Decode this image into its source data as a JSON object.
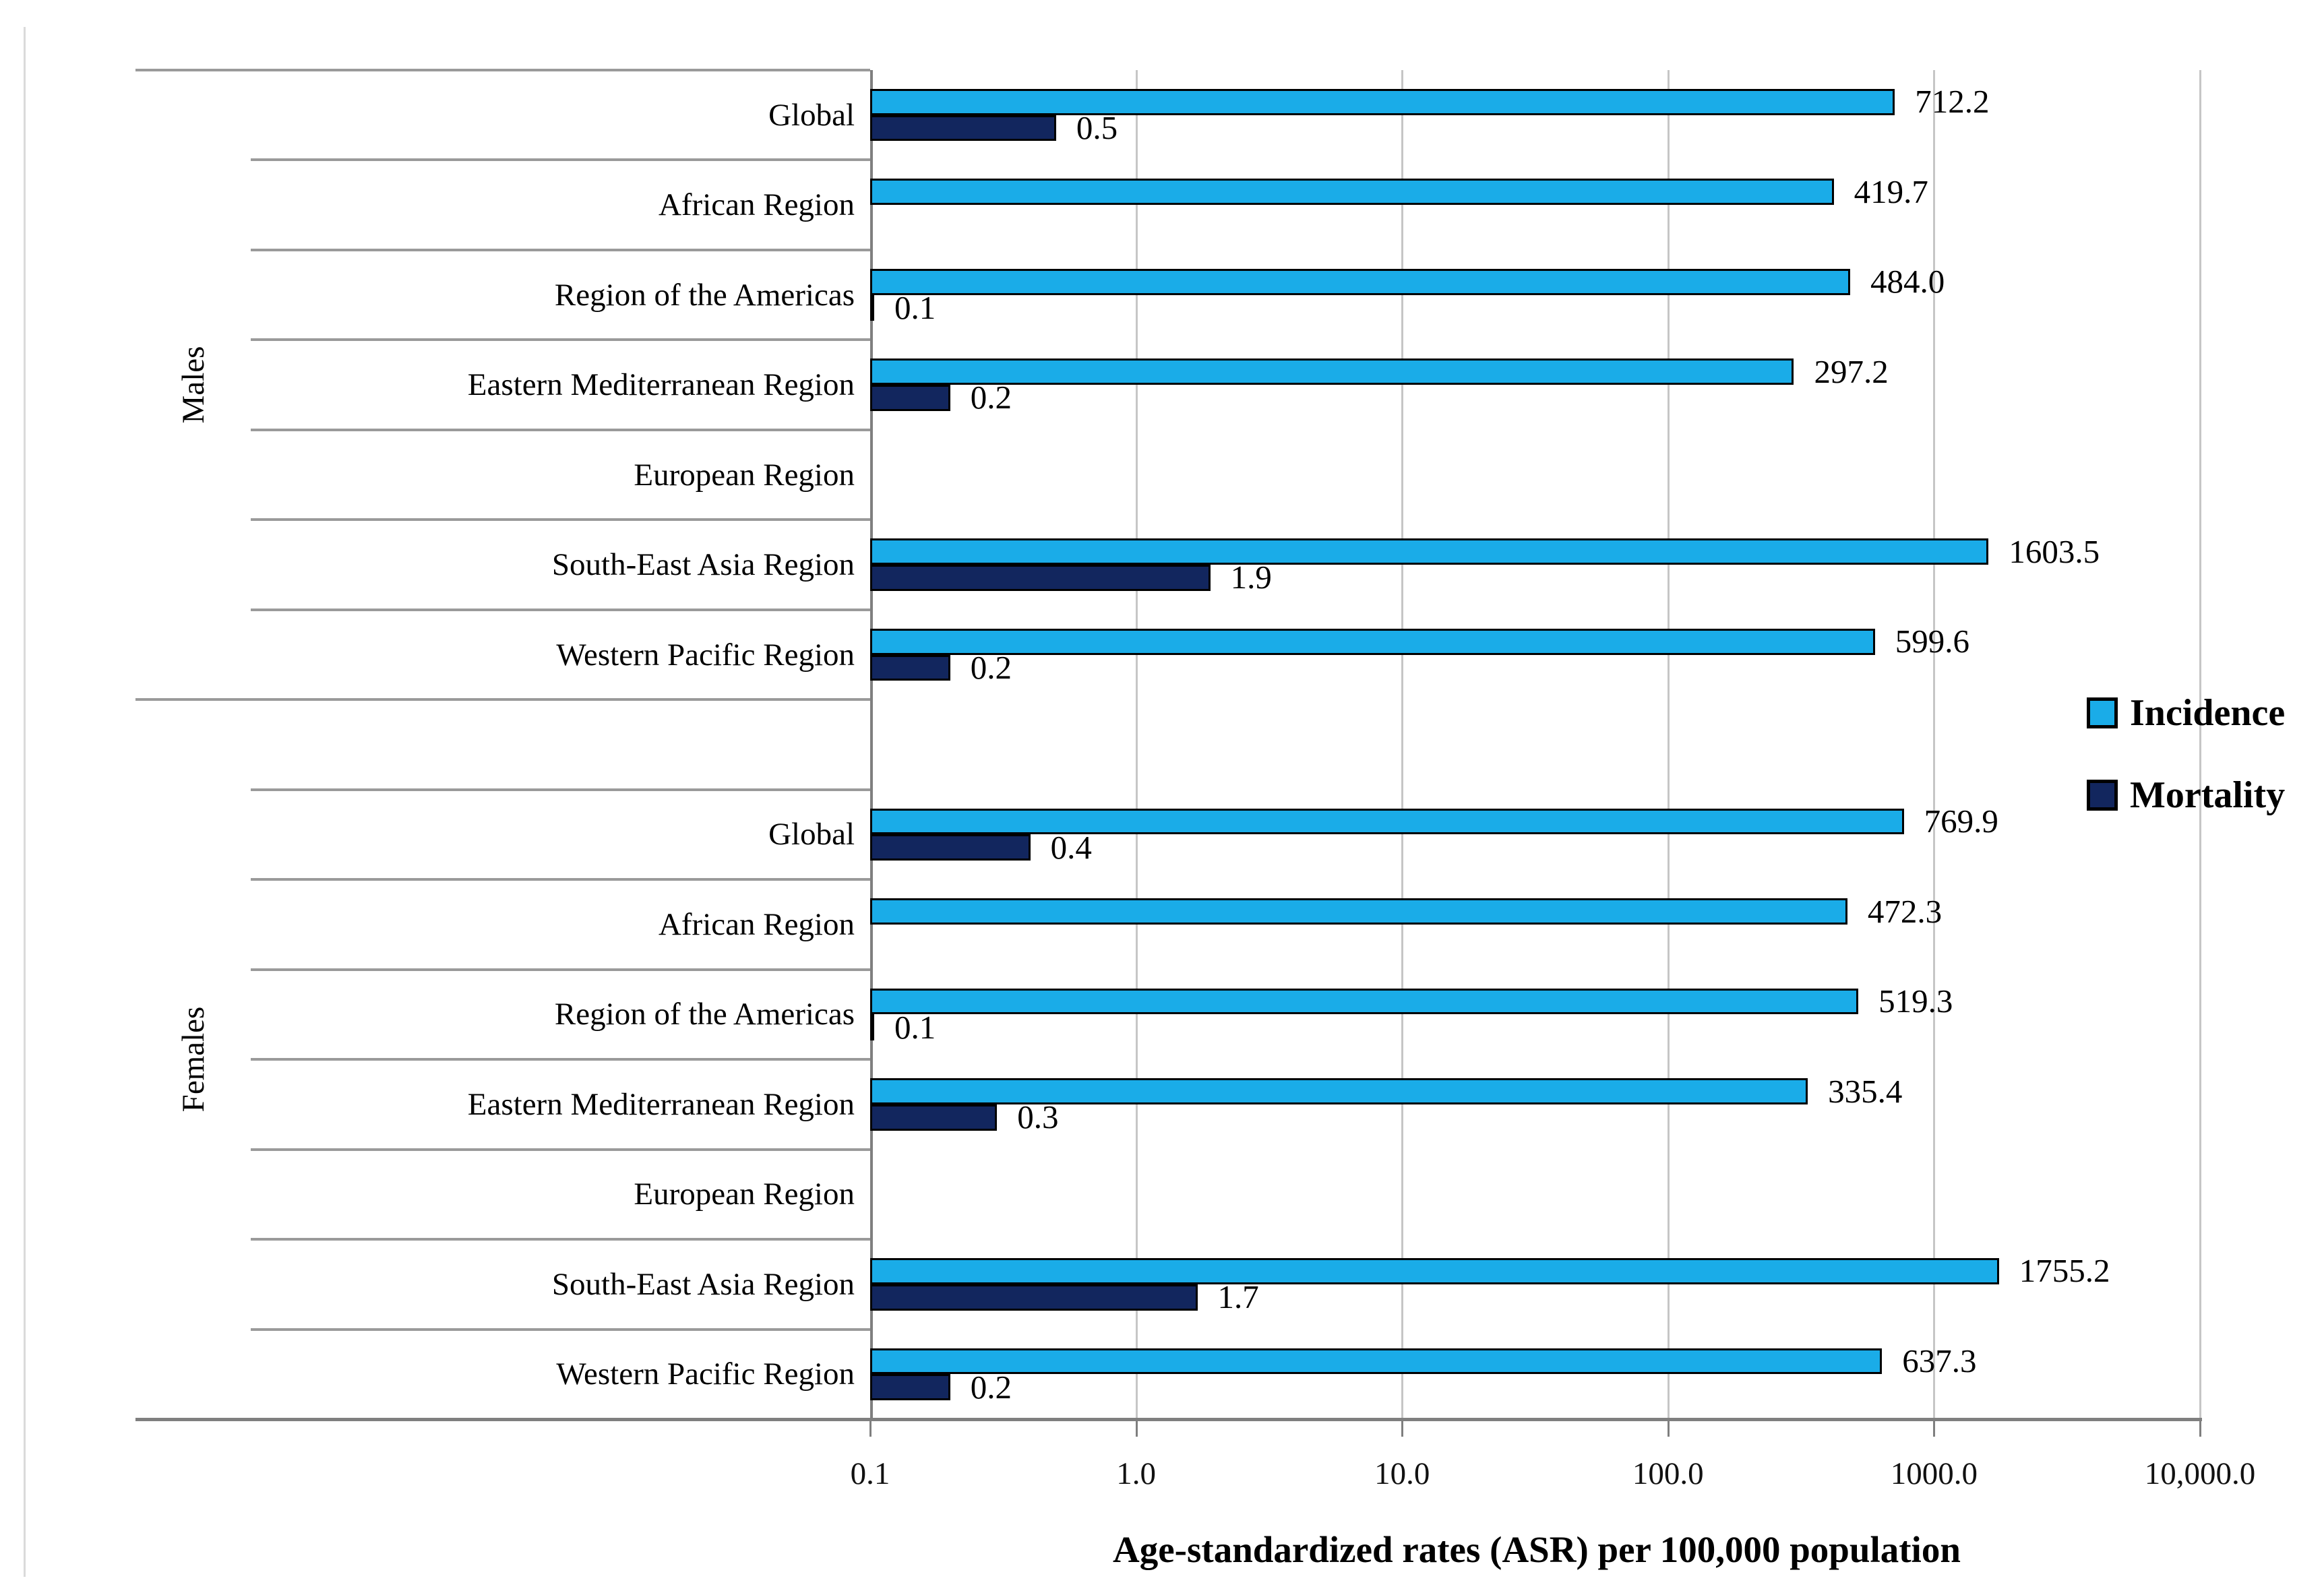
{
  "chart_data": {
    "type": "bar",
    "orientation": "horizontal",
    "x_scale": "log",
    "xlim": [
      0.1,
      10000
    ],
    "grid": "vertical-only",
    "xlabel": "Age-standardized rates (ASR) per 100,000 population",
    "x_ticks": [
      "0.1",
      "1.0",
      "10.0",
      "100.0",
      "1000.0",
      "10,000.0"
    ],
    "x_tick_values": [
      0.1,
      1,
      10,
      100,
      1000,
      10000
    ],
    "legend_position": "right",
    "legend": [
      {
        "name": "Incidence",
        "color": "#1AACE8"
      },
      {
        "name": "Mortality",
        "color": "#12265E"
      }
    ],
    "groups": [
      {
        "name": "Males",
        "rows": [
          {
            "label": "Global",
            "incidence": 712.2,
            "incidence_label": "712.2",
            "mortality": 0.5,
            "mortality_label": "0.5"
          },
          {
            "label": "African Region",
            "incidence": 419.7,
            "incidence_label": "419.7",
            "mortality": null,
            "mortality_label": ""
          },
          {
            "label": "Region of the Americas",
            "incidence": 484.0,
            "incidence_label": "484.0",
            "mortality": 0.1,
            "mortality_label": "0.1"
          },
          {
            "label": "Eastern Mediterranean Region",
            "incidence": 297.2,
            "incidence_label": "297.2",
            "mortality": 0.2,
            "mortality_label": "0.2"
          },
          {
            "label": "European Region",
            "incidence": null,
            "incidence_label": "",
            "mortality": null,
            "mortality_label": ""
          },
          {
            "label": "South-East Asia Region",
            "incidence": 1603.5,
            "incidence_label": "1603.5",
            "mortality": 1.9,
            "mortality_label": "1.9"
          },
          {
            "label": "Western Pacific Region",
            "incidence": 599.6,
            "incidence_label": "599.6",
            "mortality": 0.2,
            "mortality_label": "0.2"
          }
        ]
      },
      {
        "name": "Females",
        "rows": [
          {
            "label": "",
            "spacer": true,
            "incidence": null,
            "incidence_label": "",
            "mortality": null,
            "mortality_label": ""
          },
          {
            "label": "Global",
            "incidence": 769.9,
            "incidence_label": "769.9",
            "mortality": 0.4,
            "mortality_label": "0.4"
          },
          {
            "label": "African Region",
            "incidence": 472.3,
            "incidence_label": "472.3",
            "mortality": null,
            "mortality_label": ""
          },
          {
            "label": "Region of the Americas",
            "incidence": 519.3,
            "incidence_label": "519.3",
            "mortality": 0.1,
            "mortality_label": "0.1"
          },
          {
            "label": "Eastern Mediterranean Region",
            "incidence": 335.4,
            "incidence_label": "335.4",
            "mortality": 0.3,
            "mortality_label": "0.3"
          },
          {
            "label": "European Region",
            "incidence": null,
            "incidence_label": "",
            "mortality": null,
            "mortality_label": ""
          },
          {
            "label": "South-East Asia Region",
            "incidence": 1755.2,
            "incidence_label": "1755.2",
            "mortality": 1.7,
            "mortality_label": "1.7"
          },
          {
            "label": "Western Pacific Region",
            "incidence": 637.3,
            "incidence_label": "637.3",
            "mortality": 0.2,
            "mortality_label": "0.2"
          }
        ]
      }
    ],
    "colors": {
      "incidence": "#1AACE8",
      "mortality": "#12265E",
      "gridline": "#C6C6C6",
      "axis": "#7F7F7F",
      "separator": "#9A9A9A",
      "bar_border": "#000000"
    }
  }
}
